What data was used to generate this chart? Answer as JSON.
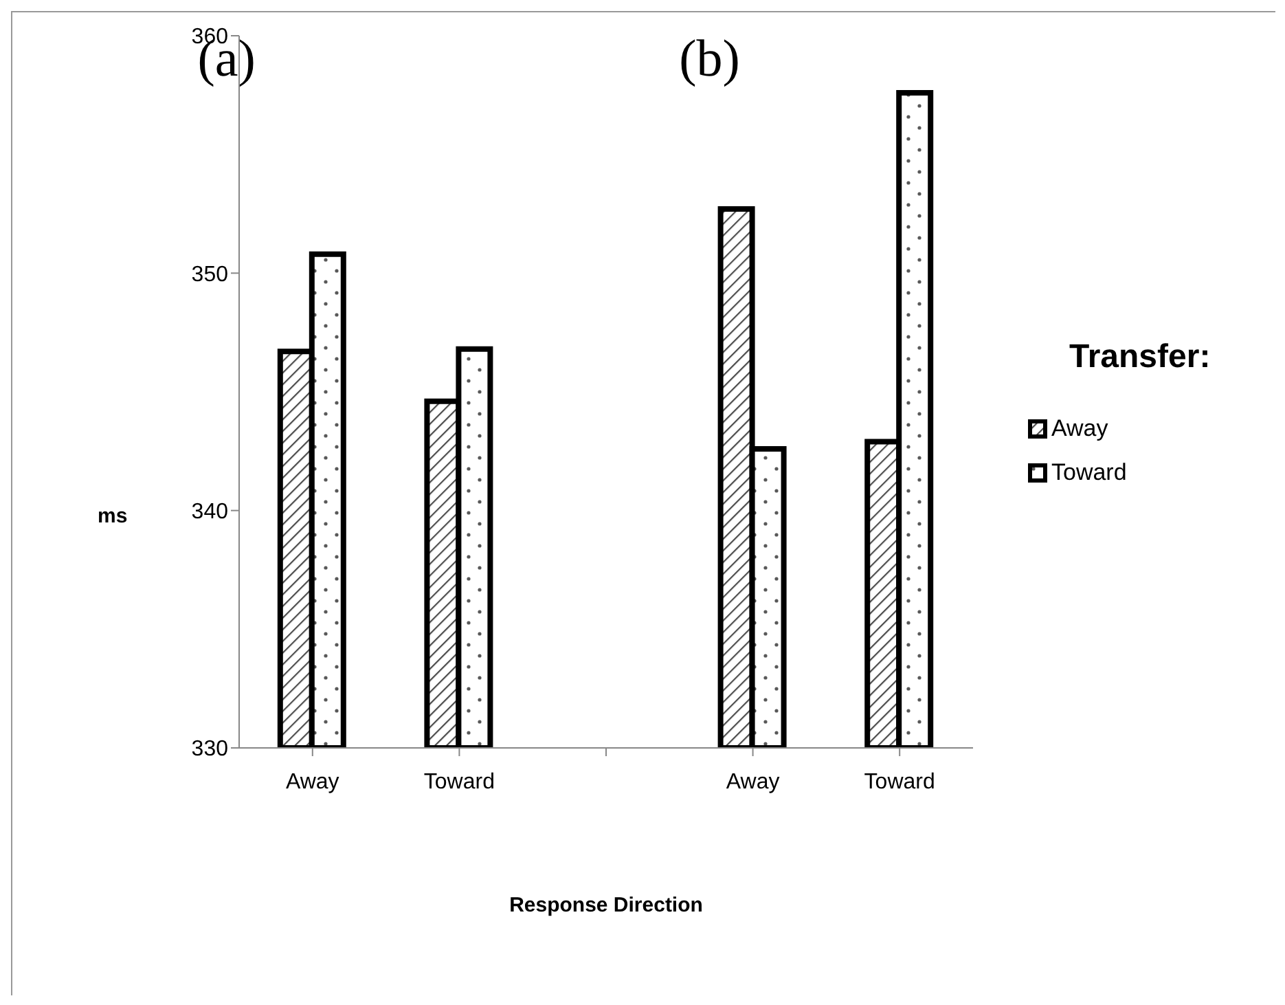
{
  "chart_data": {
    "type": "bar",
    "xlabel": "Response Direction",
    "ylabel": "ms",
    "legend_title": "Transfer:",
    "categories": [
      "Away",
      "Toward",
      null,
      "Away",
      "Toward"
    ],
    "series": [
      {
        "name": "Away",
        "color": "#000000",
        "values": [
          346.7,
          344.6,
          null,
          352.7,
          342.9
        ]
      },
      {
        "name": "Toward",
        "color": "#000000",
        "values": [
          350.8,
          346.8,
          null,
          342.6,
          357.6
        ]
      }
    ],
    "ylim": [
      330,
      360
    ],
    "yticks": [
      330,
      340,
      350,
      360
    ],
    "legend": "right",
    "annotations": [
      "(a)",
      "(b)"
    ]
  }
}
